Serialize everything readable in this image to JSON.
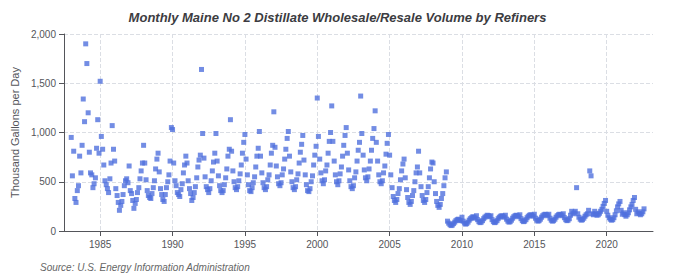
{
  "chart_data": {
    "type": "scatter",
    "title": "Monthly Maine No 2 Distillate Wholesale/Resale Volume by Refiners",
    "ylabel": "Thousand Gallons per Day",
    "annotations": [
      "Source: U.S. Energy Information Administration"
    ],
    "marker": "square",
    "grid": true,
    "xlim": [
      1982.5,
      2023.2
    ],
    "xticks": [
      1985,
      1990,
      1995,
      2000,
      2005,
      2010,
      2015,
      2020
    ],
    "ylim": [
      0,
      2000
    ],
    "yticks": [
      0,
      500,
      {
        "value": 1000,
        "label": "1,000"
      },
      {
        "value": 1500,
        "label": "1,500"
      },
      {
        "value": 2000,
        "label": "2,000"
      }
    ],
    "x": [
      1983.0,
      1983.08,
      1983.17,
      1983.25,
      1983.33,
      1983.42,
      1983.5,
      1983.58,
      1983.67,
      1983.75,
      1983.83,
      1983.92,
      1984.0,
      1984.08,
      1984.17,
      1984.25,
      1984.33,
      1984.42,
      1984.5,
      1984.58,
      1984.67,
      1984.75,
      1984.83,
      1984.92,
      1985.0,
      1985.08,
      1985.17,
      1985.25,
      1985.33,
      1985.42,
      1985.5,
      1985.58,
      1985.67,
      1985.75,
      1985.83,
      1985.92,
      1986.0,
      1986.08,
      1986.17,
      1986.25,
      1986.33,
      1986.42,
      1986.5,
      1986.58,
      1986.67,
      1986.75,
      1986.83,
      1986.92,
      1987.0,
      1987.08,
      1987.17,
      1987.25,
      1987.33,
      1987.42,
      1987.5,
      1987.58,
      1987.67,
      1987.75,
      1987.83,
      1987.92,
      1988.0,
      1988.08,
      1988.17,
      1988.25,
      1988.33,
      1988.42,
      1988.5,
      1988.58,
      1988.67,
      1988.75,
      1988.83,
      1988.92,
      1989.0,
      1989.08,
      1989.17,
      1989.25,
      1989.33,
      1989.42,
      1989.5,
      1989.58,
      1989.67,
      1989.75,
      1989.83,
      1989.92,
      1990.0,
      1990.08,
      1990.17,
      1990.25,
      1990.33,
      1990.42,
      1990.5,
      1990.58,
      1990.67,
      1990.75,
      1990.83,
      1990.92,
      1991.0,
      1991.08,
      1991.17,
      1991.25,
      1991.33,
      1991.42,
      1991.5,
      1991.58,
      1991.67,
      1991.75,
      1991.83,
      1991.92,
      1992.0,
      1992.08,
      1992.17,
      1992.25,
      1992.33,
      1992.42,
      1992.5,
      1992.58,
      1992.67,
      1992.75,
      1992.83,
      1992.92,
      1993.0,
      1993.08,
      1993.17,
      1993.25,
      1993.33,
      1993.42,
      1993.5,
      1993.58,
      1993.67,
      1993.75,
      1993.83,
      1993.92,
      1994.0,
      1994.08,
      1994.17,
      1994.25,
      1994.33,
      1994.42,
      1994.5,
      1994.58,
      1994.67,
      1994.75,
      1994.83,
      1994.92,
      1995.0,
      1995.08,
      1995.17,
      1995.25,
      1995.33,
      1995.42,
      1995.5,
      1995.58,
      1995.67,
      1995.75,
      1995.83,
      1995.92,
      1996.0,
      1996.08,
      1996.17,
      1996.25,
      1996.33,
      1996.42,
      1996.5,
      1996.58,
      1996.67,
      1996.75,
      1996.83,
      1996.92,
      1997.0,
      1997.08,
      1997.17,
      1997.25,
      1997.33,
      1997.42,
      1997.5,
      1997.58,
      1997.67,
      1997.75,
      1997.83,
      1997.92,
      1998.0,
      1998.08,
      1998.17,
      1998.25,
      1998.33,
      1998.42,
      1998.5,
      1998.58,
      1998.67,
      1998.75,
      1998.83,
      1998.92,
      1999.0,
      1999.08,
      1999.17,
      1999.25,
      1999.33,
      1999.42,
      1999.5,
      1999.58,
      1999.67,
      1999.75,
      1999.83,
      1999.92,
      2000.0,
      2000.08,
      2000.17,
      2000.25,
      2000.33,
      2000.42,
      2000.5,
      2000.58,
      2000.67,
      2000.75,
      2000.83,
      2000.92,
      2001.0,
      2001.08,
      2001.17,
      2001.25,
      2001.33,
      2001.42,
      2001.5,
      2001.58,
      2001.67,
      2001.75,
      2001.83,
      2001.92,
      2002.0,
      2002.08,
      2002.17,
      2002.25,
      2002.33,
      2002.42,
      2002.5,
      2002.58,
      2002.67,
      2002.75,
      2002.83,
      2002.92,
      2003.0,
      2003.08,
      2003.17,
      2003.25,
      2003.33,
      2003.42,
      2003.5,
      2003.58,
      2003.67,
      2003.75,
      2003.83,
      2003.92,
      2004.0,
      2004.08,
      2004.17,
      2004.25,
      2004.33,
      2004.42,
      2004.5,
      2004.58,
      2004.67,
      2004.75,
      2004.83,
      2004.92,
      2005.0,
      2005.08,
      2005.17,
      2005.25,
      2005.33,
      2005.42,
      2005.5,
      2005.58,
      2005.67,
      2005.75,
      2005.83,
      2005.92,
      2006.0,
      2006.08,
      2006.17,
      2006.25,
      2006.33,
      2006.42,
      2006.5,
      2006.58,
      2006.67,
      2006.75,
      2006.83,
      2006.92,
      2007.0,
      2007.08,
      2007.17,
      2007.25,
      2007.33,
      2007.42,
      2007.5,
      2007.58,
      2007.67,
      2007.75,
      2007.83,
      2007.92,
      2008.0,
      2008.08,
      2008.17,
      2008.25,
      2008.33,
      2008.42,
      2008.5,
      2008.58,
      2008.67,
      2008.75,
      2008.83,
      2008.92,
      2009.0,
      2009.08,
      2009.17,
      2009.25,
      2009.33,
      2009.42,
      2009.5,
      2009.58,
      2009.67,
      2009.75,
      2009.83,
      2009.92,
      2010.0,
      2010.08,
      2010.17,
      2010.25,
      2010.33,
      2010.42,
      2010.5,
      2010.58,
      2010.67,
      2010.75,
      2010.83,
      2010.92,
      2011.0,
      2011.08,
      2011.17,
      2011.25,
      2011.33,
      2011.42,
      2011.5,
      2011.58,
      2011.67,
      2011.75,
      2011.83,
      2011.92,
      2012.0,
      2012.08,
      2012.17,
      2012.25,
      2012.33,
      2012.42,
      2012.5,
      2012.58,
      2012.67,
      2012.75,
      2012.83,
      2012.92,
      2013.0,
      2013.08,
      2013.17,
      2013.25,
      2013.33,
      2013.42,
      2013.5,
      2013.58,
      2013.67,
      2013.75,
      2013.83,
      2013.92,
      2014.0,
      2014.08,
      2014.17,
      2014.25,
      2014.33,
      2014.42,
      2014.5,
      2014.58,
      2014.67,
      2014.75,
      2014.83,
      2014.92,
      2015.0,
      2015.08,
      2015.17,
      2015.25,
      2015.33,
      2015.42,
      2015.5,
      2015.58,
      2015.67,
      2015.75,
      2015.83,
      2015.92,
      2016.0,
      2016.08,
      2016.17,
      2016.25,
      2016.33,
      2016.42,
      2016.5,
      2016.58,
      2016.67,
      2016.75,
      2016.83,
      2016.92,
      2017.0,
      2017.08,
      2017.17,
      2017.25,
      2017.33,
      2017.42,
      2017.5,
      2017.58,
      2017.67,
      2017.75,
      2017.83,
      2017.92,
      2018.0,
      2018.08,
      2018.17,
      2018.25,
      2018.33,
      2018.42,
      2018.5,
      2018.58,
      2018.67,
      2018.75,
      2018.83,
      2018.92,
      2019.0,
      2019.08,
      2019.17,
      2019.25,
      2019.33,
      2019.42,
      2019.5,
      2019.58,
      2019.67,
      2019.75,
      2019.83,
      2019.92,
      2020.0,
      2020.08,
      2020.17,
      2020.25,
      2020.33,
      2020.42,
      2020.5,
      2020.58,
      2020.67,
      2020.75,
      2020.83,
      2020.92,
      2021.0,
      2021.08,
      2021.17,
      2021.25,
      2021.33,
      2021.42,
      2021.5,
      2021.58,
      2021.67,
      2021.75,
      2021.83,
      2021.92,
      2022.0,
      2022.08,
      2022.17,
      2022.25,
      2022.33,
      2022.42,
      2022.5,
      2022.58
    ],
    "values": [
      950,
      560,
      810,
      330,
      290,
      410,
      460,
      760,
      590,
      870,
      1340,
      1110,
      1900,
      1700,
      1200,
      800,
      590,
      570,
      440,
      480,
      540,
      840,
      1130,
      790,
      1520,
      960,
      830,
      670,
      510,
      470,
      430,
      390,
      530,
      690,
      1070,
      830,
      710,
      430,
      360,
      290,
      210,
      260,
      300,
      370,
      460,
      510,
      530,
      490,
      660,
      410,
      380,
      310,
      230,
      280,
      320,
      390,
      440,
      530,
      610,
      690,
      870,
      690,
      520,
      410,
      360,
      340,
      330,
      380,
      440,
      510,
      630,
      730,
      790,
      600,
      430,
      370,
      320,
      300,
      370,
      440,
      500,
      570,
      710,
      1050,
      1030,
      690,
      510,
      460,
      390,
      370,
      350,
      420,
      480,
      590,
      670,
      760,
      690,
      510,
      430,
      380,
      310,
      340,
      390,
      450,
      540,
      650,
      720,
      770,
      1640,
      990,
      740,
      550,
      450,
      420,
      390,
      430,
      510,
      610,
      700,
      790,
      990,
      710,
      560,
      460,
      410,
      390,
      410,
      470,
      540,
      630,
      760,
      830,
      1130,
      810,
      610,
      500,
      440,
      420,
      450,
      510,
      580,
      670,
      790,
      900,
      980,
      730,
      570,
      470,
      410,
      400,
      440,
      490,
      550,
      650,
      760,
      840,
      1010,
      760,
      590,
      490,
      440,
      420,
      450,
      520,
      570,
      670,
      790,
      870,
      1210,
      850,
      660,
      550,
      480,
      460,
      490,
      570,
      630,
      730,
      830,
      940,
      1010,
      760,
      600,
      500,
      440,
      420,
      450,
      520,
      580,
      690,
      800,
      880,
      970,
      720,
      570,
      470,
      410,
      400,
      430,
      500,
      560,
      670,
      770,
      860,
      1350,
      960,
      730,
      590,
      510,
      480,
      520,
      610,
      670,
      790,
      910,
      1000,
      1270,
      910,
      710,
      570,
      500,
      470,
      510,
      580,
      650,
      760,
      870,
      970,
      1050,
      790,
      620,
      510,
      450,
      430,
      460,
      540,
      600,
      710,
      820,
      900,
      1370,
      990,
      770,
      620,
      540,
      510,
      550,
      630,
      710,
      820,
      940,
      1040,
      1220,
      900,
      710,
      570,
      500,
      480,
      510,
      590,
      660,
      780,
      890,
      980,
      770,
      570,
      440,
      350,
      310,
      290,
      320,
      380,
      430,
      520,
      610,
      680,
      730,
      540,
      420,
      340,
      290,
      270,
      300,
      360,
      410,
      500,
      590,
      650,
      810,
      590,
      450,
      360,
      310,
      290,
      320,
      390,
      450,
      540,
      630,
      700,
      690,
      500,
      380,
      300,
      260,
      240,
      270,
      330,
      380,
      460,
      540,
      600,
      100,
      80,
      65,
      55,
      60,
      75,
      90,
      105,
      115,
      120,
      110,
      105,
      140,
      100,
      80,
      70,
      75,
      90,
      110,
      125,
      135,
      145,
      140,
      130,
      155,
      115,
      95,
      85,
      90,
      105,
      125,
      140,
      150,
      160,
      155,
      145,
      155,
      115,
      95,
      85,
      90,
      105,
      125,
      140,
      150,
      155,
      150,
      140,
      160,
      120,
      100,
      90,
      95,
      110,
      130,
      145,
      155,
      160,
      155,
      145,
      165,
      125,
      105,
      95,
      100,
      115,
      135,
      150,
      160,
      165,
      160,
      150,
      170,
      130,
      110,
      100,
      105,
      120,
      140,
      155,
      165,
      170,
      165,
      155,
      170,
      130,
      110,
      100,
      105,
      120,
      140,
      155,
      165,
      170,
      165,
      155,
      175,
      135,
      115,
      105,
      110,
      125,
      160,
      200,
      175,
      185,
      200,
      440,
      175,
      140,
      120,
      110,
      115,
      130,
      150,
      165,
      175,
      210,
      610,
      560,
      175,
      165,
      200,
      175,
      160,
      165,
      180,
      200,
      220,
      250,
      280,
      310,
      200,
      160,
      135,
      120,
      110,
      115,
      135,
      165,
      205,
      245,
      275,
      300,
      210,
      170,
      185,
      165,
      150,
      165,
      185,
      215,
      245,
      270,
      310,
      340,
      220,
      175,
      195,
      180,
      165,
      175,
      195,
      225
    ]
  }
}
